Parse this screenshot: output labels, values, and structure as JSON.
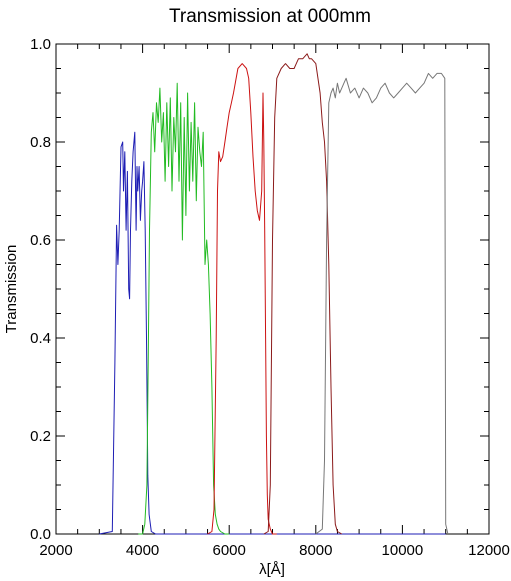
{
  "chart_data": {
    "type": "line",
    "title": "Transmission at 000mm",
    "xlabel": "λ[Å]",
    "ylabel": "Transmission",
    "xlim": [
      2000,
      12000
    ],
    "ylim": [
      0.0,
      1.0
    ],
    "xticks": [
      2000,
      4000,
      6000,
      8000,
      10000,
      12000
    ],
    "xtick_labels": [
      "2000",
      "4000",
      "6000",
      "8000",
      "10000",
      "12000"
    ],
    "yticks": [
      0.0,
      0.2,
      0.4,
      0.6,
      0.8,
      1.0
    ],
    "ytick_labels": [
      "0.0",
      "0.2",
      "0.4",
      "0.6",
      "0.8",
      "1.0"
    ],
    "grid": false,
    "series": [
      {
        "color": "#1e1eb4",
        "x": [
          3000,
          3300,
          3360,
          3400,
          3430,
          3460,
          3500,
          3540,
          3560,
          3590,
          3620,
          3650,
          3680,
          3700,
          3720,
          3750,
          3780,
          3820,
          3850,
          3870,
          3890,
          3920,
          3950,
          3980,
          4000,
          4030,
          4060,
          4090,
          4120,
          4150,
          4200,
          4300,
          5000,
          6000,
          7000,
          8000,
          9000,
          10000,
          11000
        ],
        "y": [
          0.0,
          0.005,
          0.35,
          0.63,
          0.55,
          0.62,
          0.79,
          0.8,
          0.7,
          0.78,
          0.62,
          0.74,
          0.5,
          0.48,
          0.62,
          0.72,
          0.78,
          0.82,
          0.62,
          0.75,
          0.7,
          0.75,
          0.64,
          0.7,
          0.72,
          0.76,
          0.62,
          0.4,
          0.12,
          0.04,
          0.005,
          0.0,
          0.0,
          0.0,
          0.0,
          0.0,
          0.0,
          0.0,
          0.0
        ]
      },
      {
        "color": "#22bb22",
        "x": [
          3900,
          4000,
          4050,
          4100,
          4130,
          4160,
          4200,
          4240,
          4280,
          4320,
          4360,
          4400,
          4440,
          4480,
          4520,
          4560,
          4600,
          4640,
          4680,
          4720,
          4760,
          4800,
          4840,
          4880,
          4920,
          4960,
          5000,
          5040,
          5080,
          5120,
          5160,
          5200,
          5240,
          5280,
          5320,
          5360,
          5400,
          5440,
          5480,
          5520,
          5560,
          5600,
          5640,
          5680,
          5720,
          5760,
          5800,
          5900,
          6000
        ],
        "y": [
          0.0,
          0.0,
          0.02,
          0.1,
          0.35,
          0.62,
          0.82,
          0.86,
          0.78,
          0.88,
          0.84,
          0.91,
          0.8,
          0.86,
          0.72,
          0.88,
          0.75,
          0.89,
          0.7,
          0.85,
          0.78,
          0.92,
          0.72,
          0.88,
          0.6,
          0.85,
          0.65,
          0.9,
          0.7,
          0.84,
          0.72,
          0.88,
          0.68,
          0.83,
          0.78,
          0.75,
          0.82,
          0.55,
          0.6,
          0.55,
          0.45,
          0.3,
          0.1,
          0.04,
          0.02,
          0.01,
          0.005,
          0.0,
          0.0
        ]
      },
      {
        "color": "#cc1111",
        "x": [
          5500,
          5600,
          5650,
          5700,
          5730,
          5760,
          5800,
          5850,
          5900,
          5950,
          6000,
          6050,
          6100,
          6200,
          6300,
          6400,
          6450,
          6500,
          6550,
          6600,
          6650,
          6700,
          6750,
          6780,
          6800,
          6820,
          6840,
          6860,
          6880,
          6900,
          6950,
          7000,
          7100
        ],
        "y": [
          0.0,
          0.005,
          0.05,
          0.4,
          0.7,
          0.78,
          0.76,
          0.77,
          0.8,
          0.83,
          0.86,
          0.88,
          0.9,
          0.95,
          0.96,
          0.95,
          0.93,
          0.86,
          0.77,
          0.7,
          0.66,
          0.64,
          0.7,
          0.9,
          0.8,
          0.62,
          0.4,
          0.2,
          0.08,
          0.03,
          0.01,
          0.0,
          0.0
        ]
      },
      {
        "color": "#8b1a1a",
        "x": [
          6800,
          6900,
          6950,
          7000,
          7050,
          7100,
          7200,
          7300,
          7400,
          7500,
          7550,
          7600,
          7700,
          7800,
          7850,
          7900,
          8000,
          8100,
          8150,
          8200,
          8250,
          8300,
          8350,
          8400,
          8450,
          8500,
          8600
        ],
        "y": [
          0.0,
          0.005,
          0.1,
          0.6,
          0.85,
          0.93,
          0.95,
          0.96,
          0.95,
          0.95,
          0.96,
          0.97,
          0.97,
          0.98,
          0.97,
          0.97,
          0.96,
          0.9,
          0.84,
          0.8,
          0.72,
          0.55,
          0.3,
          0.1,
          0.02,
          0.005,
          0.0
        ]
      },
      {
        "color": "#777777",
        "x": [
          8000,
          8150,
          8200,
          8250,
          8300,
          8350,
          8400,
          8450,
          8500,
          8550,
          8600,
          8650,
          8700,
          8800,
          8900,
          9000,
          9100,
          9200,
          9300,
          9400,
          9500,
          9600,
          9700,
          9800,
          9900,
          10000,
          10100,
          10200,
          10300,
          10400,
          10500,
          10600,
          10700,
          10800,
          10900,
          10980,
          11000,
          11050
        ],
        "y": [
          0.0,
          0.01,
          0.15,
          0.6,
          0.88,
          0.9,
          0.91,
          0.89,
          0.92,
          0.9,
          0.91,
          0.92,
          0.93,
          0.9,
          0.91,
          0.89,
          0.91,
          0.9,
          0.88,
          0.89,
          0.91,
          0.92,
          0.9,
          0.89,
          0.9,
          0.91,
          0.92,
          0.91,
          0.9,
          0.91,
          0.92,
          0.94,
          0.93,
          0.94,
          0.94,
          0.93,
          0.02,
          0.0
        ]
      }
    ]
  }
}
